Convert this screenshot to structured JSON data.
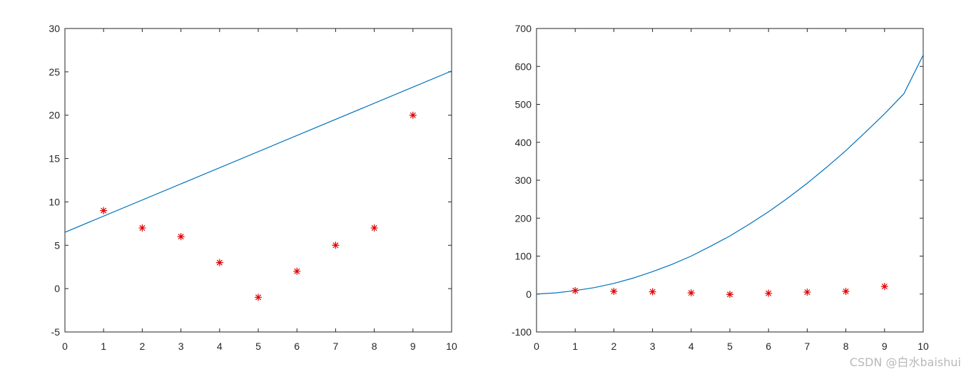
{
  "chart_data": [
    {
      "type": "scatter",
      "title": "",
      "xlabel": "",
      "ylabel": "",
      "xlim": [
        0,
        10
      ],
      "ylim": [
        -5,
        30
      ],
      "xticks": [
        0,
        1,
        2,
        3,
        4,
        5,
        6,
        7,
        8,
        9,
        10
      ],
      "yticks": [
        -5,
        0,
        5,
        10,
        15,
        20,
        25,
        30
      ],
      "grid": false,
      "series": [
        {
          "kind": "markers",
          "marker": "asterisk",
          "color": "#e00000",
          "x": [
            1,
            2,
            3,
            4,
            5,
            6,
            7,
            8,
            9
          ],
          "y": [
            9,
            7,
            6,
            3,
            -1,
            2,
            5,
            7,
            20
          ]
        },
        {
          "kind": "line",
          "color": "#0072bd",
          "x": [
            0,
            10
          ],
          "y": [
            6.5,
            25.1
          ]
        }
      ]
    },
    {
      "type": "scatter",
      "title": "",
      "xlabel": "",
      "ylabel": "",
      "xlim": [
        0,
        10
      ],
      "ylim": [
        -100,
        700
      ],
      "xticks": [
        0,
        1,
        2,
        3,
        4,
        5,
        6,
        7,
        8,
        9,
        10
      ],
      "yticks": [
        -100,
        0,
        100,
        200,
        300,
        400,
        500,
        600,
        700
      ],
      "grid": false,
      "series": [
        {
          "kind": "markers",
          "marker": "asterisk",
          "color": "#e00000",
          "x": [
            1,
            2,
            3,
            4,
            5,
            6,
            7,
            8,
            9
          ],
          "y": [
            9,
            7,
            6,
            3,
            -1,
            2,
            5,
            7,
            20
          ]
        },
        {
          "kind": "curve",
          "color": "#0072bd",
          "x": [
            0,
            0.5,
            1,
            1.5,
            2,
            2.5,
            3,
            3.5,
            4,
            4.5,
            5,
            5.5,
            6,
            6.5,
            7,
            7.5,
            8,
            8.5,
            9,
            9.5,
            10
          ],
          "y": [
            0,
            3,
            9,
            17,
            28,
            42,
            59,
            78,
            100,
            126,
            153,
            184,
            217,
            253,
            292,
            334,
            378,
            426,
            475,
            528,
            630
          ]
        }
      ]
    }
  ],
  "watermark": "CSDN @白水baishui"
}
